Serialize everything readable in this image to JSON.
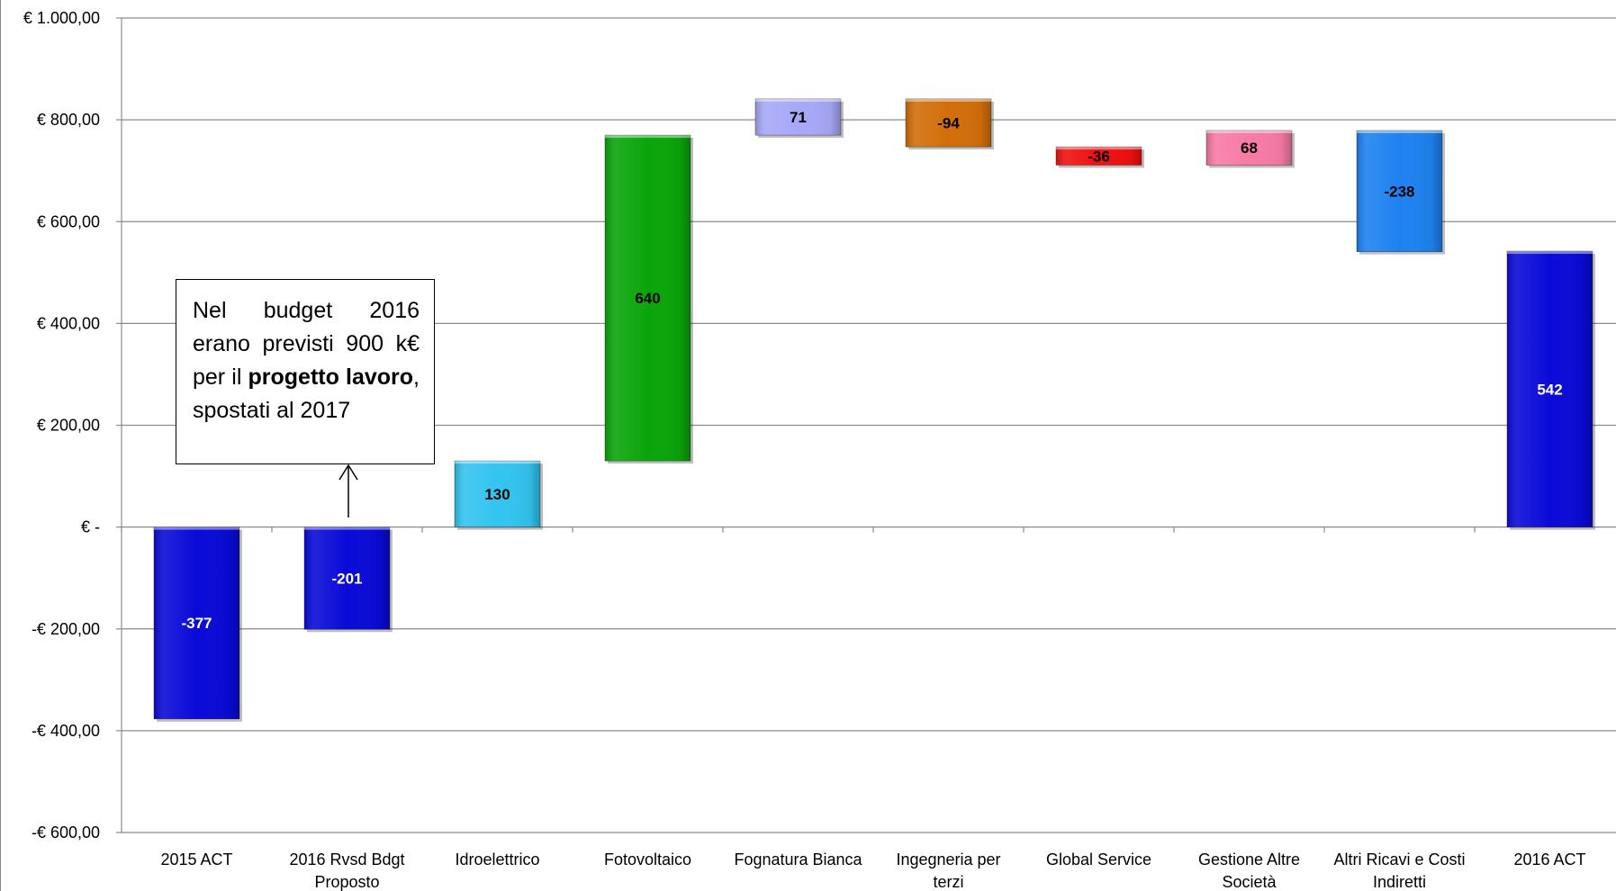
{
  "chart_data": {
    "type": "bar",
    "subtype": "waterfall",
    "title": "",
    "xlabel": "",
    "ylabel": "",
    "ylim": [
      -600,
      1000
    ],
    "y_ticks": [
      -600,
      -400,
      -200,
      0,
      200,
      400,
      600,
      800,
      1000
    ],
    "y_tick_labels": [
      "-€ 600,00",
      "-€ 400,00",
      "-€ 200,00",
      "€ -",
      "€ 200,00",
      "€ 400,00",
      "€ 600,00",
      "€ 800,00",
      "€ 1.000,00"
    ],
    "grid": true,
    "legend": "none",
    "categories": [
      [
        "2015 ACT"
      ],
      [
        "2016 Rvsd Bdgt",
        "Proposto"
      ],
      [
        "Idroelettrico"
      ],
      [
        "Fotovoltaico"
      ],
      [
        "Fognatura Bianca"
      ],
      [
        "Ingegneria per",
        "terzi"
      ],
      [
        "Global Service"
      ],
      [
        "Gestione Altre",
        "Società"
      ],
      [
        "Altri Ricavi e Costi",
        "Indiretti"
      ],
      [
        "2016 ACT"
      ]
    ],
    "bars": [
      {
        "start": 0,
        "end": -377,
        "label": "-377",
        "color": "#0a0ad8",
        "label_color": "#ffffff"
      },
      {
        "start": 0,
        "end": -201,
        "label": "-201",
        "color": "#0a0ad8",
        "label_color": "#ffffff"
      },
      {
        "start": 0,
        "end": 130,
        "label": "130",
        "color": "#33c4f0",
        "label_color": "#000000"
      },
      {
        "start": 130,
        "end": 770,
        "label": "640",
        "color": "#0aa50a",
        "label_color": "#000000"
      },
      {
        "start": 770,
        "end": 841,
        "label": "71",
        "color": "#a8a8f8",
        "label_color": "#000000"
      },
      {
        "start": 841,
        "end": 747,
        "label": "-94",
        "color": "#d26e0a",
        "label_color": "#000000"
      },
      {
        "start": 747,
        "end": 711,
        "label": "-36",
        "color": "#f01010",
        "label_color": "#000000"
      },
      {
        "start": 711,
        "end": 779,
        "label": "68",
        "color": "#f87aa6",
        "label_color": "#000000"
      },
      {
        "start": 779,
        "end": 541,
        "label": "-238",
        "color": "#1e82f0",
        "label_color": "#000000"
      },
      {
        "start": 0,
        "end": 542,
        "label": "542",
        "color": "#0a0ad8",
        "label_color": "#ffffff"
      }
    ]
  },
  "annotation": {
    "text_1": "Nel budget 2016 erano previsti 900 k€ per il ",
    "text_bold": "progetto lavoro",
    "text_2": ", spostati al 2017"
  }
}
